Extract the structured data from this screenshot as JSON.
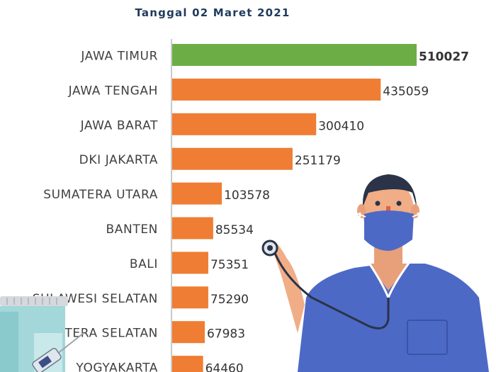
{
  "subtitle": "Tanggal 02 Maret 2021",
  "colors": {
    "highlight": "#6cae45",
    "bar": "#ef7d33",
    "label": "#404040",
    "axis": "#a6a6a6",
    "subtitle": "#1f3a5c"
  },
  "chart_data": {
    "type": "bar",
    "orientation": "horizontal",
    "title": "",
    "subtitle": "Tanggal 02 Maret 2021",
    "categories": [
      "JAWA TIMUR",
      "JAWA TENGAH",
      "JAWA BARAT",
      "DKI JAKARTA",
      "SUMATERA UTARA",
      "BANTEN",
      "BALI",
      "SULAWESI SELATAN",
      "SUMATERA SELATAN",
      "YOGYAKARTA"
    ],
    "values": [
      510027,
      435059,
      300410,
      251179,
      103578,
      85534,
      75351,
      75290,
      67983,
      64460
    ],
    "highlighted_category": "JAWA TIMUR",
    "data_labels": true,
    "grid": false,
    "legend": "none"
  }
}
